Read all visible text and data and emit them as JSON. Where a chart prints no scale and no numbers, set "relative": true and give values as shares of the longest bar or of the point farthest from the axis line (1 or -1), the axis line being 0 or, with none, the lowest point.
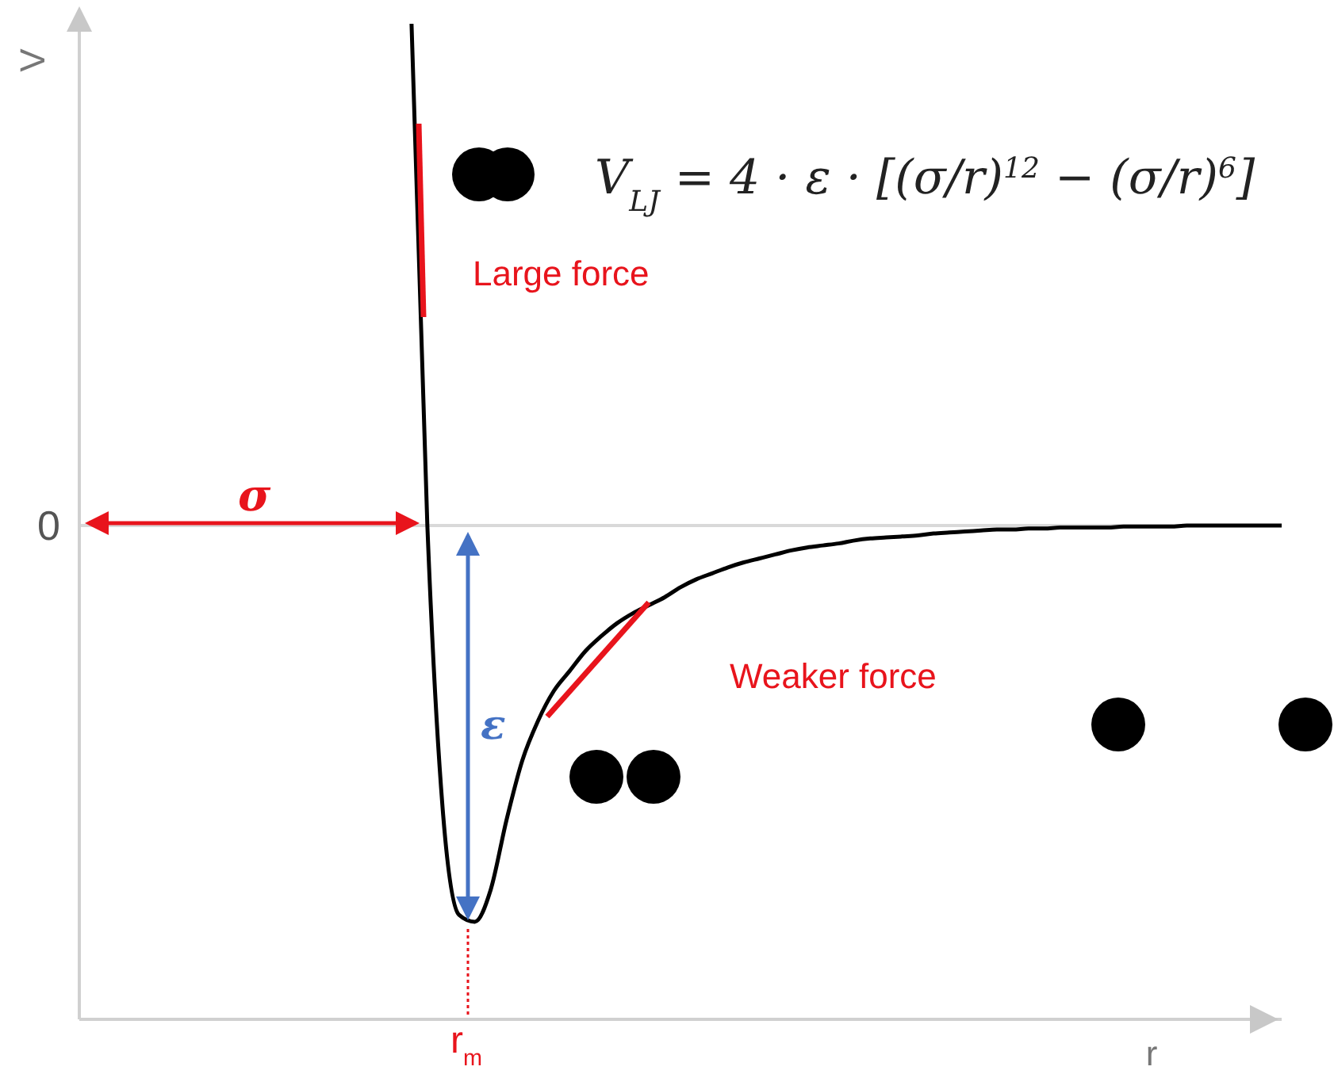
{
  "chart_data": {
    "type": "line",
    "relative": true,
    "xlabel": "r",
    "ylabel": "V",
    "marker": "none",
    "color": "#000000",
    "categories": [
      null,
      null,
      null,
      null,
      null,
      null,
      null,
      null,
      null,
      null,
      null,
      null,
      null,
      null,
      null,
      null,
      null,
      null,
      null,
      null,
      null,
      null,
      null,
      null,
      null,
      null,
      null,
      null,
      null,
      null,
      null,
      null,
      null,
      null,
      null,
      null,
      null,
      null,
      null,
      null,
      null,
      null,
      null,
      null,
      null,
      null,
      null,
      null,
      null,
      null,
      null,
      null,
      null,
      null,
      null,
      null,
      null,
      null,
      null,
      null,
      null,
      null,
      null,
      null,
      null,
      null,
      null,
      null,
      null,
      null,
      null,
      null,
      null,
      null,
      null,
      null,
      null
    ],
    "values": [
      null,
      null,
      null,
      null,
      null,
      null,
      null,
      null,
      null,
      null,
      null,
      null,
      null,
      null,
      null,
      null,
      null,
      null,
      null,
      null,
      null,
      1.0,
      0.496,
      0.205,
      0.105,
      0.098,
      0.13,
      0.2,
      0.26,
      0.3,
      0.33,
      0.35,
      0.37,
      0.385,
      0.398,
      0.408,
      0.416,
      0.424,
      0.434,
      0.442,
      0.448,
      0.454,
      0.459,
      0.463,
      0.467,
      0.471,
      0.474,
      0.476,
      0.478,
      0.481,
      0.483,
      0.484,
      0.485,
      0.486,
      0.488,
      0.489,
      0.49,
      0.491,
      0.492,
      0.492,
      0.493,
      0.493,
      0.494,
      0.494,
      0.494,
      0.494,
      0.495,
      0.495,
      0.495,
      0.495,
      0.496,
      0.496,
      0.496,
      0.496,
      0.496,
      0.496,
      0.496
    ],
    "ref_lines": [
      {
        "axis": "y",
        "value": 0.496,
        "label": "0",
        "color": "#d9d9d9"
      }
    ],
    "annotations": [
      "V$_{LJ}$ = 4 · ε · [(σ/r)$^{12}$ − (σ/r)$^{6}$]",
      "Large force",
      "Weaker force",
      "σ",
      "ε",
      "r$_{m}$"
    ]
  }
}
